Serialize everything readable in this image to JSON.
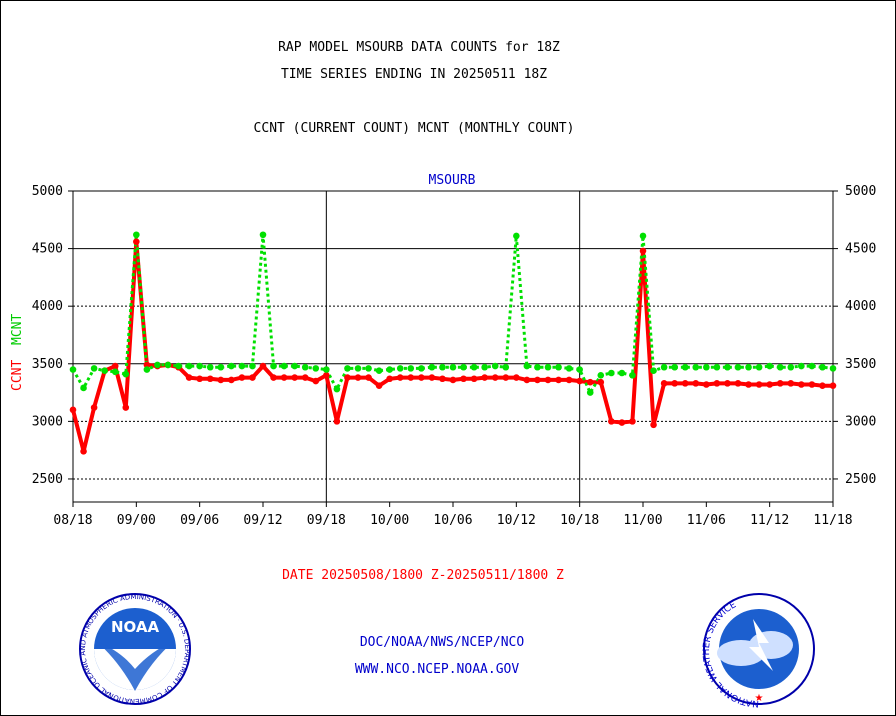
{
  "header": {
    "title_line1": "RAP MODEL MSOURB DATA COUNTS for 18Z",
    "title_line2": "TIME SERIES ENDING IN 20250511 18Z",
    "subtitle": "CCNT (CURRENT COUNT) MCNT (MONTHLY COUNT)"
  },
  "footer": {
    "date_range": "DATE 20250508/1800 Z-20250511/1800 Z",
    "org_line": "DOC/NOAA/NWS/NCEP/NCO",
    "url_line": "WWW.NCO.NCEP.NOAA.GOV"
  },
  "logos": {
    "noaa": "NOAA",
    "noaa_ring": "NATIONAL OCEANIC AND ATMOSPHERIC ADMINISTRATION · U.S. DEPARTMENT OF COMMERCE",
    "nws_ring": "NATIONAL WEATHER SERVICE"
  },
  "colors": {
    "ccnt": "#ff0000",
    "mcnt": "#00e000",
    "text_blue": "#0000cc",
    "date_red": "#ff0000"
  },
  "chart_data": {
    "type": "line",
    "panel_title": "MSOURB",
    "ylabel_left": [
      "CCNT",
      "MCNT"
    ],
    "ylim": [
      2300,
      5000
    ],
    "y_ticks": [
      2500,
      3000,
      3500,
      4000,
      4500,
      5000
    ],
    "x_ticks": [
      "08/18",
      "09/00",
      "09/06",
      "09/12",
      "09/18",
      "10/00",
      "10/06",
      "10/12",
      "10/18",
      "11/00",
      "11/06",
      "11/12",
      "11/18"
    ],
    "x_range_hours": [
      0,
      72
    ],
    "day_boundaries_hours": [
      24,
      48
    ],
    "grid": true,
    "series": [
      {
        "name": "CCNT",
        "x_hours": [
          0,
          1,
          2,
          3,
          4,
          5,
          6,
          7,
          8,
          9,
          10,
          11,
          12,
          13,
          14,
          15,
          16,
          17,
          18,
          19,
          20,
          21,
          22,
          23,
          24,
          25,
          26,
          27,
          28,
          29,
          30,
          31,
          32,
          33,
          34,
          35,
          36,
          37,
          38,
          39,
          40,
          41,
          42,
          43,
          44,
          45,
          46,
          47,
          48,
          49,
          50,
          51,
          52,
          53,
          54,
          55,
          56,
          57,
          58,
          59,
          60,
          61,
          62,
          63,
          64,
          65,
          66,
          67,
          68,
          69,
          70,
          71,
          72
        ],
        "values": [
          3100,
          2740,
          3120,
          3440,
          3480,
          3120,
          4560,
          3490,
          3480,
          3490,
          3470,
          3380,
          3370,
          3370,
          3360,
          3360,
          3380,
          3380,
          3480,
          3380,
          3380,
          3380,
          3380,
          3350,
          3400,
          3000,
          3380,
          3380,
          3380,
          3310,
          3370,
          3380,
          3380,
          3380,
          3380,
          3370,
          3360,
          3370,
          3370,
          3380,
          3380,
          3380,
          3380,
          3360,
          3360,
          3360,
          3360,
          3360,
          3350,
          3340,
          3340,
          3000,
          2990,
          3000,
          4480,
          2970,
          3330,
          3330,
          3330,
          3330,
          3320,
          3330,
          3330,
          3330,
          3320,
          3320,
          3320,
          3330,
          3330,
          3320,
          3320,
          3310,
          3310
        ]
      },
      {
        "name": "MCNT",
        "x_hours": [
          0,
          1,
          2,
          3,
          4,
          5,
          6,
          7,
          8,
          9,
          10,
          11,
          12,
          13,
          14,
          15,
          16,
          17,
          18,
          19,
          20,
          21,
          22,
          23,
          24,
          25,
          26,
          27,
          28,
          29,
          30,
          31,
          32,
          33,
          34,
          35,
          36,
          37,
          38,
          39,
          40,
          41,
          42,
          43,
          44,
          45,
          46,
          47,
          48,
          49,
          50,
          51,
          52,
          53,
          54,
          55,
          56,
          57,
          58,
          59,
          60,
          61,
          62,
          63,
          64,
          65,
          66,
          67,
          68,
          69,
          70,
          71,
          72
        ],
        "values": [
          3450,
          3290,
          3460,
          3440,
          3430,
          3410,
          4620,
          3450,
          3490,
          3490,
          3480,
          3480,
          3480,
          3470,
          3470,
          3480,
          3480,
          3480,
          4620,
          3480,
          3480,
          3480,
          3470,
          3460,
          3450,
          3280,
          3460,
          3460,
          3460,
          3440,
          3450,
          3460,
          3460,
          3460,
          3470,
          3470,
          3470,
          3470,
          3470,
          3470,
          3480,
          3470,
          4610,
          3480,
          3470,
          3470,
          3470,
          3460,
          3450,
          3250,
          3400,
          3420,
          3420,
          3400,
          4610,
          3440,
          3470,
          3470,
          3470,
          3470,
          3470,
          3470,
          3470,
          3470,
          3470,
          3470,
          3480,
          3470,
          3470,
          3480,
          3480,
          3470,
          3460
        ]
      }
    ]
  }
}
